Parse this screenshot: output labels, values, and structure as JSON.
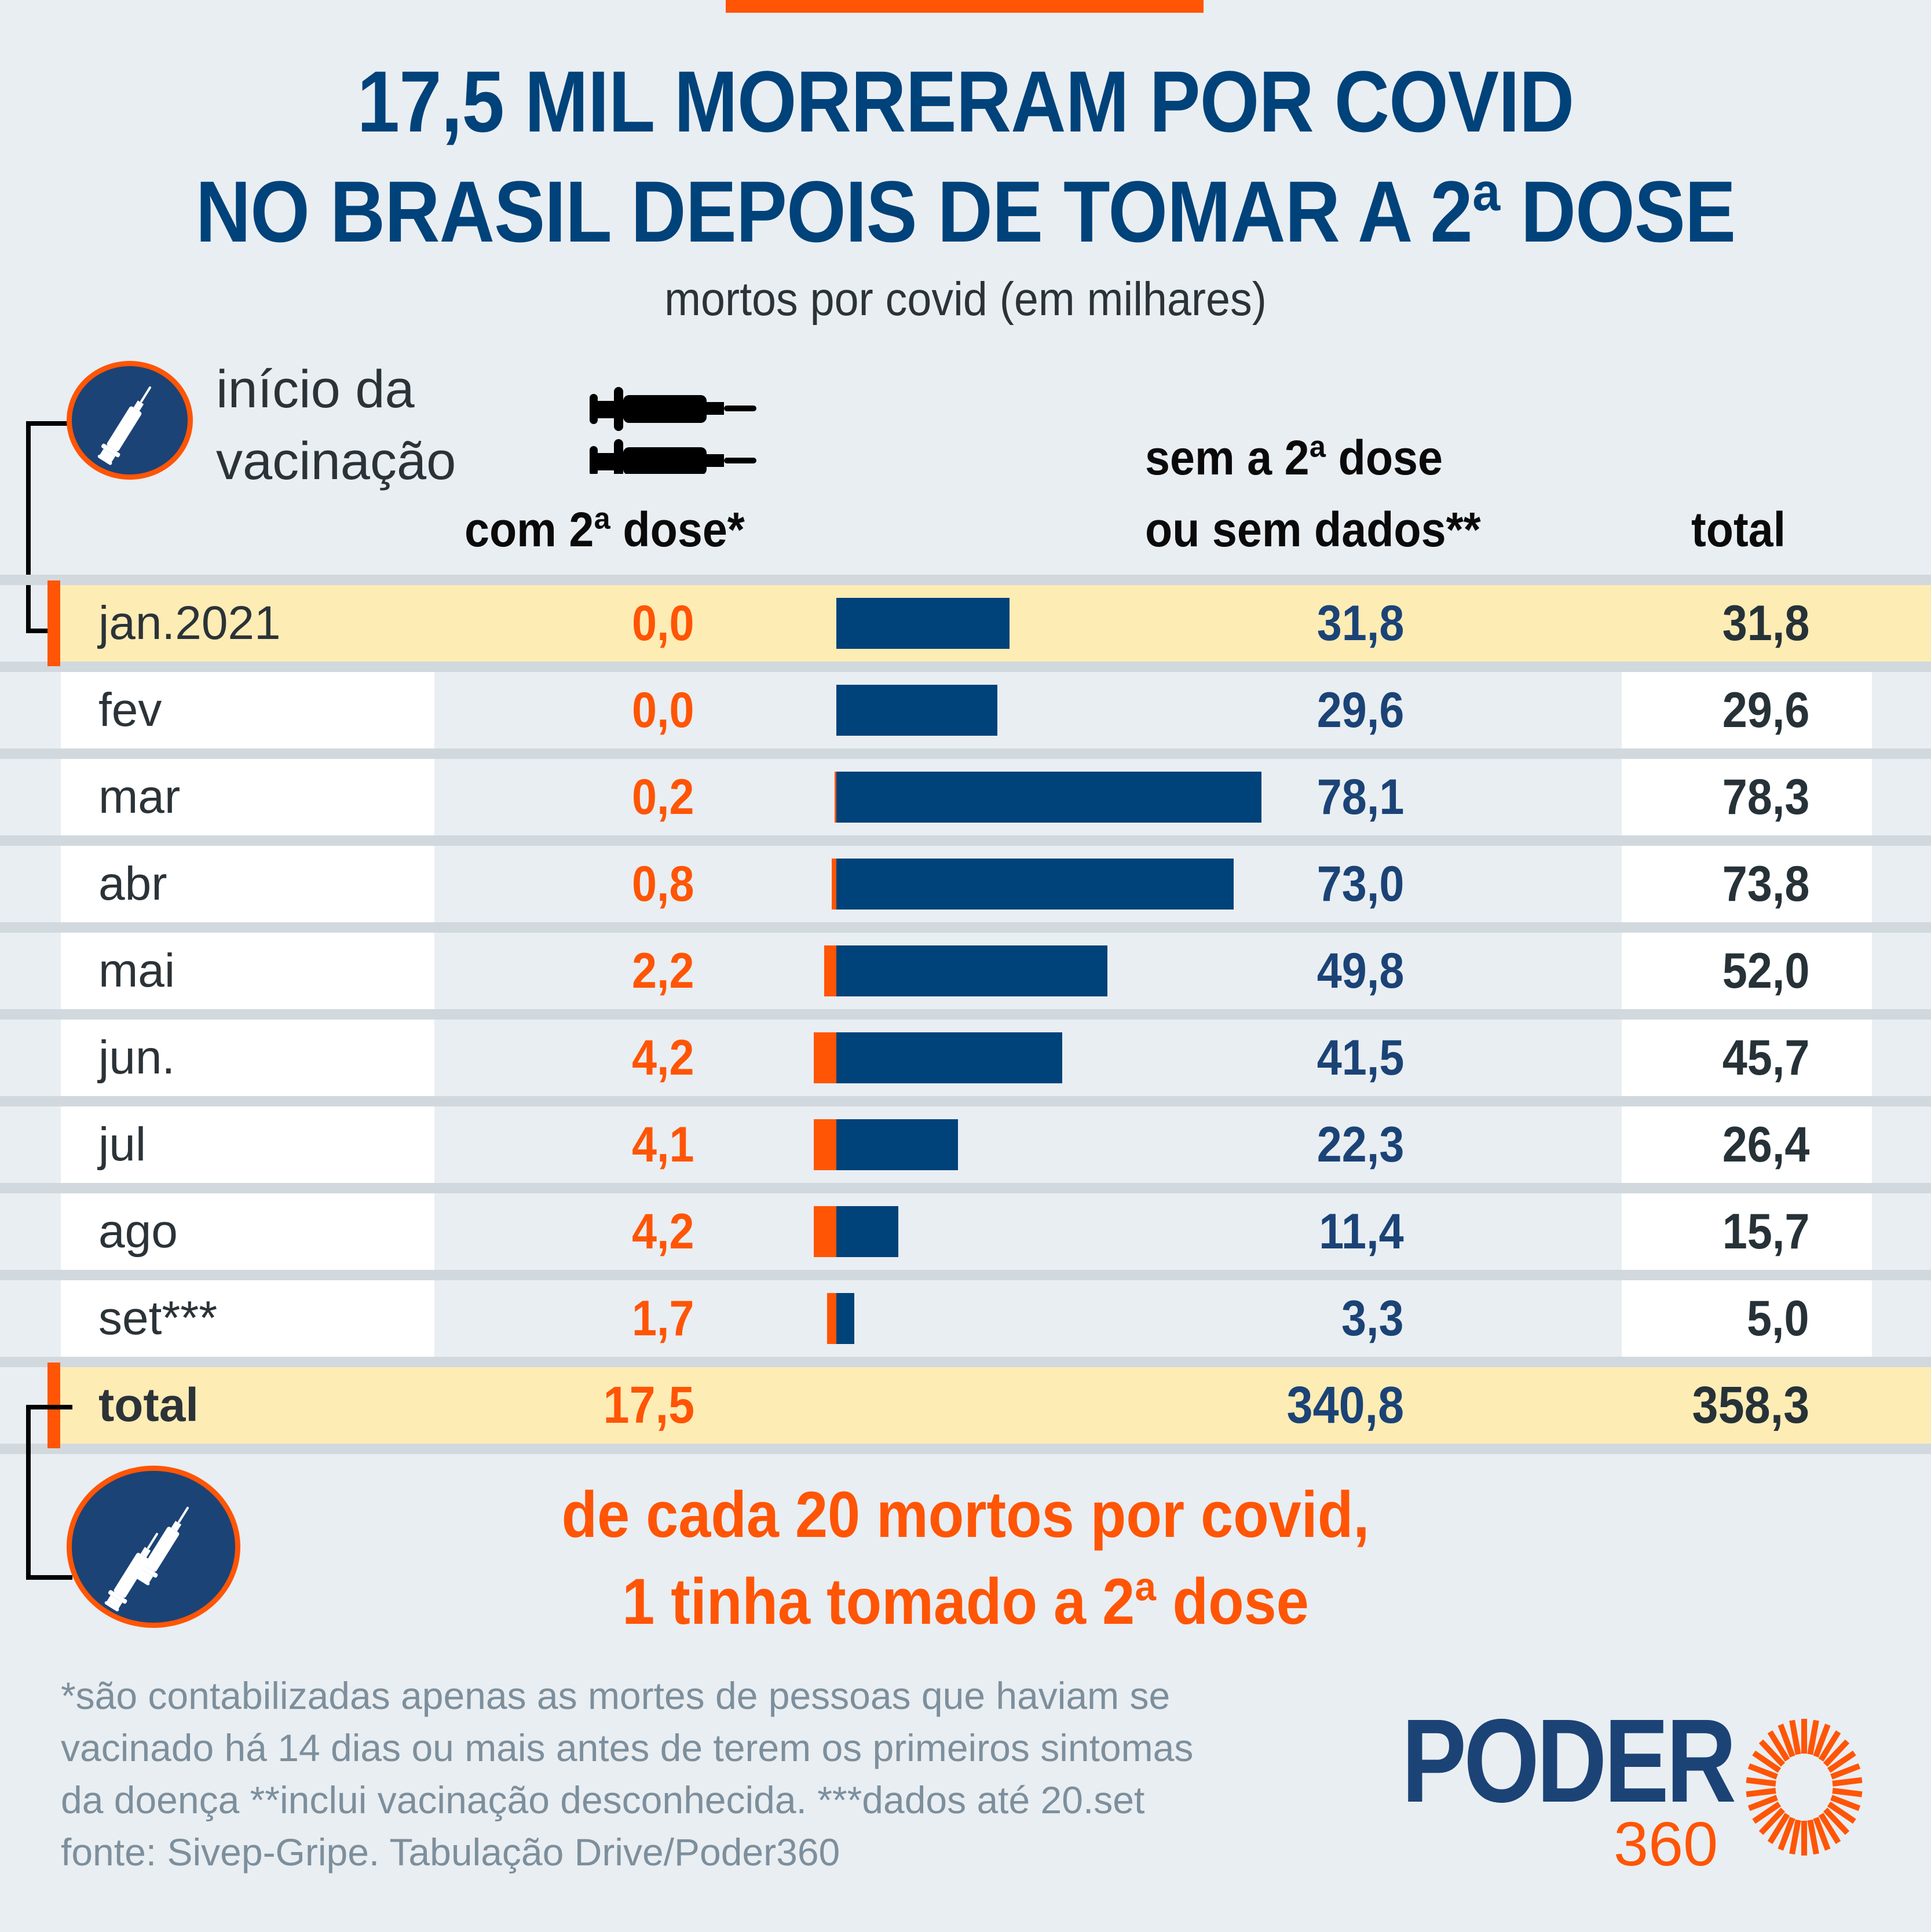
{
  "header": {
    "title_line1": "17,5 MIL MORRERAM POR COVID",
    "title_line2": "NO BRASIL DEPOIS DE TOMAR A 2ª DOSE",
    "subtitle": "mortos por covid (em milhares)"
  },
  "legend": {
    "start_label_line1": "início da",
    "start_label_line2": "vacinação",
    "icon_start": "syringe-icon",
    "icon_doses": "two-syringes-icon"
  },
  "columns": {
    "with_second_dose": "com 2ª dose*",
    "without_line1": "sem a 2ª dose",
    "without_line2": "ou sem dados**",
    "total": "total"
  },
  "colors": {
    "accent_orange": "#ff5505",
    "bar_blue": "#00427a",
    "title_blue": "#00427a",
    "highlight": "#feecb5",
    "background": "#e9eef2"
  },
  "chart_data": {
    "type": "bar",
    "stacked": true,
    "title": "17,5 MIL MORRERAM POR COVID NO BRASIL DEPOIS DE TOMAR A 2ª DOSE",
    "subtitle": "mortos por covid (em milhares)",
    "categories": [
      "jan.2021",
      "fev",
      "mar",
      "abr",
      "mai",
      "jun.",
      "jul",
      "ago",
      "set***"
    ],
    "series": [
      {
        "name": "com 2ª dose*",
        "color": "#ff5505",
        "values": [
          0.0,
          0.0,
          0.2,
          0.8,
          2.2,
          4.2,
          4.1,
          4.2,
          1.7
        ],
        "labels": [
          "0,0",
          "0,0",
          "0,2",
          "0,8",
          "2,2",
          "4,2",
          "4,1",
          "4,2",
          "1,7"
        ]
      },
      {
        "name": "sem a 2ª dose ou sem dados**",
        "color": "#00427a",
        "values": [
          31.8,
          29.6,
          78.1,
          73.0,
          49.8,
          41.5,
          22.3,
          11.4,
          3.3
        ],
        "labels": [
          "31,8",
          "29,6",
          "78,1",
          "73,0",
          "49,8",
          "41,5",
          "22,3",
          "11,4",
          "3,3"
        ]
      }
    ],
    "totals": [
      "31,8",
      "29,6",
      "78,3",
      "73,8",
      "52,0",
      "45,7",
      "26,4",
      "15,7",
      "5,0"
    ],
    "grand_total": {
      "label": "total",
      "with": "17,5",
      "without": "340,8",
      "total": "358,3"
    },
    "highlight_rows": [
      "jan.2021",
      "total"
    ]
  },
  "callout": {
    "line1": "de cada 20 mortos por covid,",
    "line2": "1 tinha tomado a 2ª dose"
  },
  "footnotes": [
    "*são contabilizadas apenas as mortes de pessoas que haviam se",
    "vacinado há 14 dias ou mais antes de terem os primeiros sintomas",
    "da doença **inclui vacinação desconhecida. ***dados até 20.set",
    "fonte: Sivep-Gripe. Tabulação Drive/Poder360"
  ],
  "logo": {
    "word": "PODER",
    "number": "360"
  }
}
